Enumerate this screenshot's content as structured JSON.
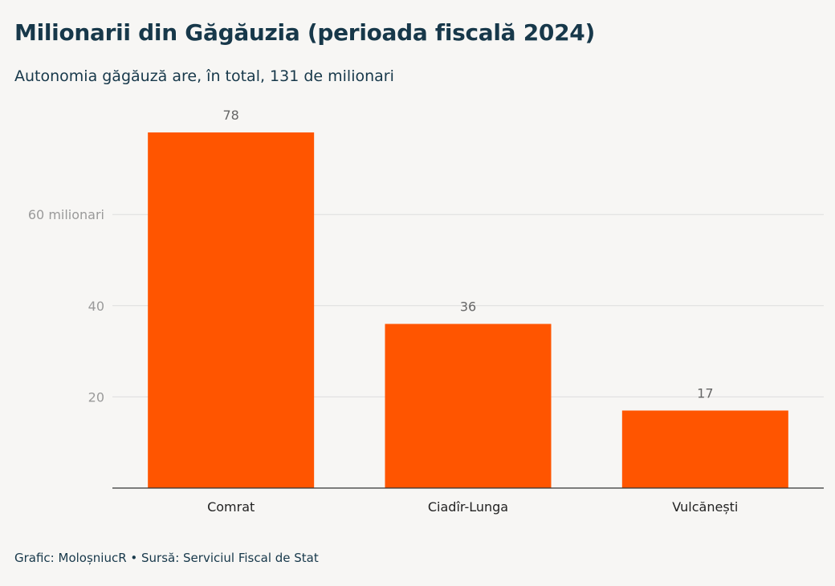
{
  "colors": {
    "bar": "#ff5500",
    "text_dark": "#17384a",
    "grid": "#dddddd",
    "axis": "#333333",
    "background": "#f7f6f4"
  },
  "chart_data": {
    "type": "bar",
    "title": "Milionarii din Găgăuzia (perioada fiscală 2024)",
    "subtitle": "Autonomia găgăuză are, în total, 131 de milionari",
    "categories": [
      "Comrat",
      "Ciadîr-Lunga",
      "Vulcănești"
    ],
    "values": [
      78,
      36,
      17
    ],
    "data_labels": [
      "78",
      "36",
      "17"
    ],
    "yticks": [
      {
        "value": 20,
        "label": "20"
      },
      {
        "value": 40,
        "label": "40"
      },
      {
        "value": 60,
        "label": "60 milionari"
      }
    ],
    "ylim": [
      0,
      80
    ],
    "grid": true,
    "legend": "none"
  },
  "footer": "Grafic: MoloșniucR • Sursă: Serviciul Fiscal de Stat"
}
